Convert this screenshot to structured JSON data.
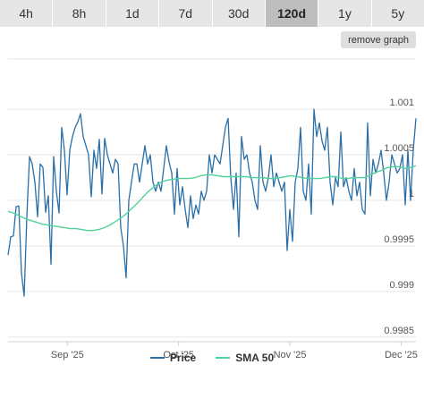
{
  "tabs": [
    {
      "label": "4h",
      "active": false
    },
    {
      "label": "8h",
      "active": false
    },
    {
      "label": "1d",
      "active": false
    },
    {
      "label": "7d",
      "active": false
    },
    {
      "label": "30d",
      "active": false
    },
    {
      "label": "120d",
      "active": true
    },
    {
      "label": "1y",
      "active": false
    },
    {
      "label": "5y",
      "active": false
    }
  ],
  "remove_button": "remove graph",
  "colors": {
    "price": "#2a6fa8",
    "sma": "#4fd39a",
    "grid": "#e6e6e6"
  },
  "chart_data": {
    "type": "line",
    "y_ticks": [
      "1.001",
      "1.0005",
      "1",
      "0.9995",
      "0.999",
      "0.9985"
    ],
    "y_tick_values": [
      1.001,
      1.0005,
      1.0,
      0.9995,
      0.999,
      0.9985
    ],
    "ylim": [
      0.99845,
      1.00155
    ],
    "x_ticks": [
      "Sep '25",
      "Oct '25",
      "Nov '25",
      "Dec '25"
    ],
    "x_tick_positions": [
      16,
      46,
      76,
      106
    ],
    "xlim": [
      0,
      110
    ],
    "series": [
      {
        "name": "Price",
        "values": [
          0.9994,
          0.9996,
          0.99961,
          0.99993,
          0.99994,
          0.9992,
          0.99895,
          0.99982,
          1.00048,
          1.0004,
          1.0002,
          0.99982,
          1.0004,
          1.00036,
          0.99987,
          1.00005,
          0.9993,
          1.00048,
          1.0001,
          0.99986,
          1.0008,
          1.00055,
          1.00006,
          1.00055,
          1.0007,
          1.0008,
          1.00086,
          1.00095,
          1.0007,
          1.0006,
          1.0005,
          1.00004,
          1.00055,
          1.00035,
          1.00067,
          1.00007,
          1.00068,
          1.0005,
          1.0004,
          1.0003,
          1.00045,
          1.0004,
          0.9997,
          0.9995,
          0.99915,
          1.0,
          1.0002,
          1.0004,
          1.0004,
          1.0002,
          1.0004,
          1.0006,
          1.0004,
          1.0005,
          1.0002,
          1.0001,
          1.0002,
          1.0001,
          1.00035,
          1.0006,
          1.00042,
          1.0003,
          0.99985,
          1.00035,
          0.99995,
          1.00015,
          0.9999,
          0.9997,
          1.00005,
          0.9998,
          0.99995,
          0.99985,
          1.0001,
          1.0,
          1.0001,
          1.0005,
          1.0003,
          1.0005,
          1.00045,
          1.0004,
          1.0006,
          1.0008,
          1.0009,
          1.00025,
          0.9999,
          1.0003,
          0.9996,
          1.0007,
          1.00045,
          1.0005,
          1.0003,
          1.0002,
          1.0,
          0.9999,
          1.0006,
          1.0002,
          1.0001,
          1.00025,
          1.0005,
          1.00015,
          1.0003,
          1.0002,
          1.0001,
          1.0002,
          0.99945,
          0.9999,
          0.99955,
          1.0002,
          1.00035,
          1.0008,
          1.0001,
          1.0,
          1.0004,
          0.99985,
          1.001,
          1.0007,
          1.00085,
          1.00065,
          1.00055,
          1.0008,
          1.0002,
          0.99995,
          1.00025,
          1.00015,
          1.00075,
          1.00015,
          1.00025,
          1.0001,
          1.0,
          1.00035,
          1.00005,
          1.0002,
          0.9999,
          0.99985,
          1.00085,
          1.00005,
          1.00045,
          1.0003,
          1.0004,
          1.00055,
          1.0003,
          1.0,
          1.0002,
          1.0005,
          1.0004,
          1.0003,
          1.00035,
          1.0005,
          0.99995,
          1.00055,
          1.0,
          1.00055,
          1.0009
        ]
      },
      {
        "name": "SMA 50",
        "values": [
          0.99988,
          0.99986,
          0.99983,
          0.9998,
          0.99978,
          0.99976,
          0.99974,
          0.99973,
          0.99972,
          0.99971,
          0.9997,
          0.99969,
          0.99969,
          0.99968,
          0.99967,
          0.99967,
          0.99968,
          0.9997,
          0.99973,
          0.99977,
          0.99981,
          0.99986,
          0.99992,
          0.99998,
          1.00005,
          1.00011,
          1.00016,
          1.0002,
          1.00022,
          1.00023,
          1.00024,
          1.00024,
          1.00024,
          1.00025,
          1.00027,
          1.00028,
          1.00028,
          1.00027,
          1.00026,
          1.00026,
          1.00026,
          1.00026,
          1.00026,
          1.00025,
          1.00025,
          1.00025,
          1.00024,
          1.00024,
          1.00025,
          1.00026,
          1.00027,
          1.00026,
          1.00025,
          1.00024,
          1.00024,
          1.00024,
          1.00025,
          1.00026,
          1.00026,
          1.00024,
          1.00024,
          1.00025,
          1.00025,
          1.00025,
          1.00028,
          1.00031,
          1.00033,
          1.00036,
          1.00037,
          1.00037,
          1.00035,
          1.00036,
          1.00038
        ]
      }
    ],
    "legend": [
      "Price",
      "SMA 50"
    ],
    "legend_position": "bottom-center",
    "grid": true
  }
}
